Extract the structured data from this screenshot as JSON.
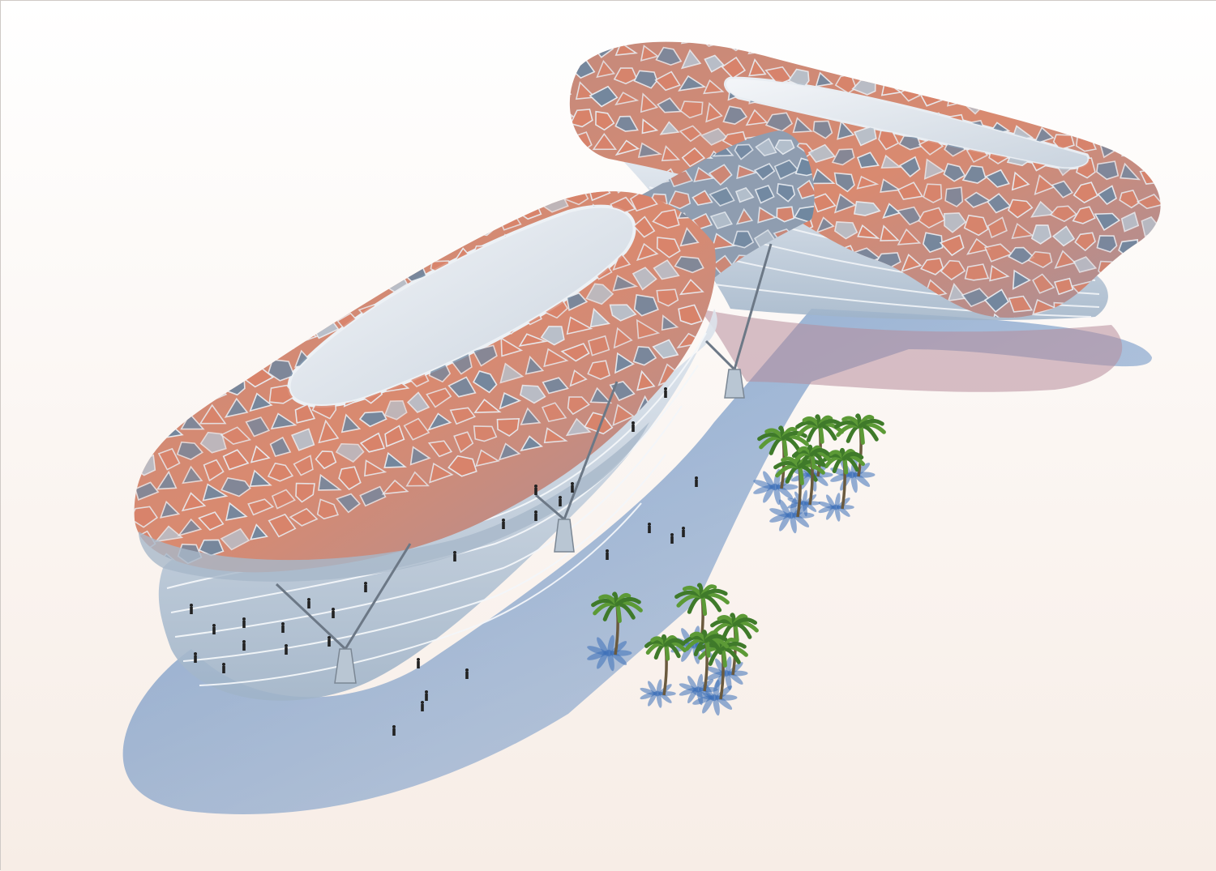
{
  "scene": {
    "subject": "freeform-building-rendering",
    "colors": {
      "ground": "#fbf5f1",
      "shadow": "#4f7fb8",
      "glass": "#8fa6bd",
      "panel_terracotta": "#d9836a",
      "panel_slate": "#6f87a0",
      "mullion": "#e9edf2",
      "palm_leaf": "#3f7a2a",
      "palm_trunk": "#6a5a3e"
    },
    "palm_count": 12,
    "people_count": 30
  }
}
